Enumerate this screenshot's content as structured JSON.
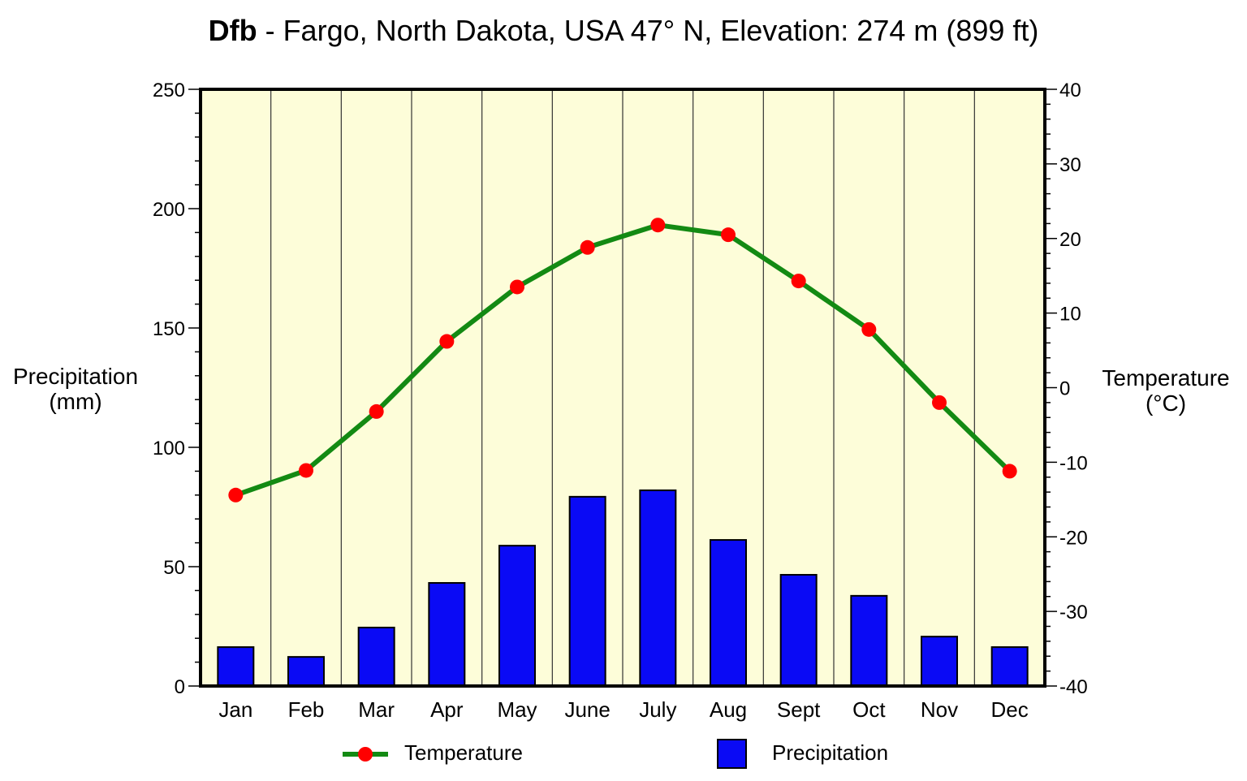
{
  "chart_data": {
    "type": "bar+line",
    "title_bold": "Dfb",
    "title_rest": " - Fargo, North Dakota, USA 47° N, Elevation: 274 m (899 ft)",
    "categories": [
      "Jan",
      "Feb",
      "Mar",
      "Apr",
      "May",
      "June",
      "July",
      "Aug",
      "Sept",
      "Oct",
      "Nov",
      "Dec"
    ],
    "series": [
      {
        "name": "Precipitation",
        "axis": "left",
        "type": "bar",
        "color": "#0a0af5",
        "values": [
          16.3,
          12.2,
          24.5,
          43.2,
          58.8,
          79.3,
          82.0,
          61.2,
          46.6,
          37.8,
          20.7,
          16.3
        ]
      },
      {
        "name": "Temperature",
        "axis": "right",
        "type": "line",
        "color": "#138a13",
        "marker_color": "#ff0000",
        "values": [
          -14.4,
          -11.1,
          -3.2,
          6.2,
          13.5,
          18.8,
          21.8,
          20.5,
          14.3,
          7.8,
          -2.0,
          -11.2
        ]
      }
    ],
    "ylabel_left": [
      "Precipitation",
      "(mm)"
    ],
    "ylabel_right": [
      "Temperature",
      "(°C)"
    ],
    "ylim_left": [
      0,
      250
    ],
    "ylim_right": [
      -40,
      40
    ],
    "yticks_left": [
      "0",
      "50",
      "100",
      "150",
      "200",
      "250"
    ],
    "yticks_right": [
      "-40",
      "-30",
      "-20",
      "-10",
      "0",
      "10",
      "20",
      "30",
      "40"
    ],
    "legend": {
      "temperature": "Temperature",
      "precipitation": "Precipitation",
      "placement": "bottom"
    },
    "background_color": "#fdfdd9"
  }
}
